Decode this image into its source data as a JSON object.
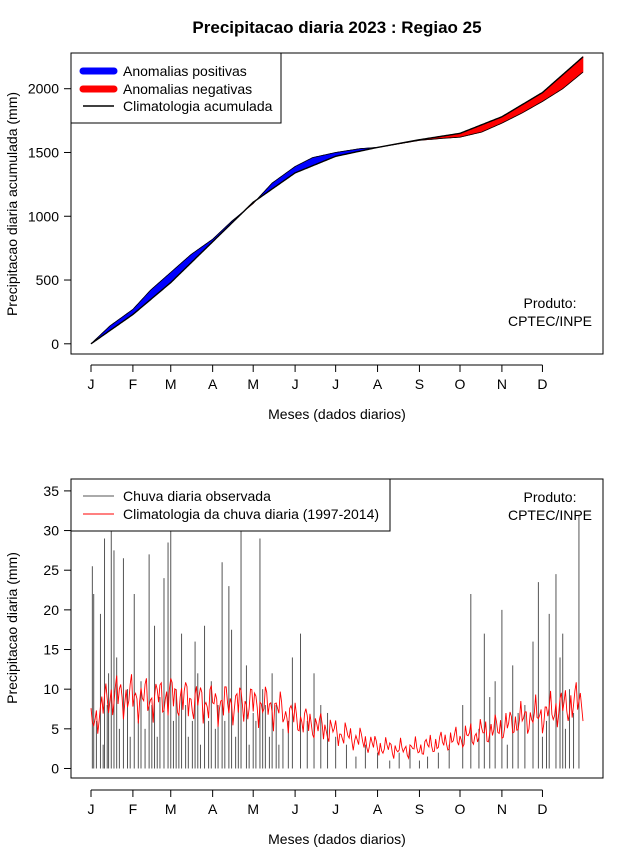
{
  "title": "Precipitacao diaria 2023 : Regiao 25",
  "chart_data": [
    {
      "type": "area",
      "description": "Accumulated daily precipitation vs accumulated climatology (anomaly bands)",
      "xlabel": "Meses (dados diarios)",
      "ylabel": "Precipitacao diaria acumulada (mm)",
      "x_ticks": [
        "J",
        "F",
        "M",
        "A",
        "M",
        "J",
        "J",
        "A",
        "S",
        "O",
        "N",
        "D"
      ],
      "month_start_days": [
        1,
        32,
        60,
        91,
        121,
        152,
        182,
        213,
        244,
        274,
        305,
        335
      ],
      "xlim": [
        1,
        365
      ],
      "ylim": [
        -80,
        2280
      ],
      "y_ticks": [
        0,
        500,
        1000,
        1500,
        2000
      ],
      "legend": {
        "position": "top-left",
        "entries": [
          "Anomalias positivas",
          "Anomalias negativas",
          "Climatologia acumulada"
        ],
        "colors": [
          "#0000ff",
          "#ff0000",
          "#000000"
        ]
      },
      "annotation": [
        "Produto:",
        "CPTEC/INPE"
      ],
      "climatology_cumulative": {
        "days": [
          1,
          32,
          60,
          91,
          121,
          152,
          182,
          213,
          244,
          274,
          305,
          335,
          365
        ],
        "values": [
          0,
          230,
          480,
          800,
          1110,
          1340,
          1470,
          1540,
          1600,
          1650,
          1780,
          1970,
          2250
        ]
      },
      "observed_cumulative": {
        "days": [
          1,
          15,
          32,
          45,
          60,
          75,
          91,
          105,
          121,
          135,
          152,
          165,
          182,
          200,
          213,
          230,
          244,
          260,
          274,
          290,
          305,
          320,
          335,
          350,
          365
        ],
        "values": [
          0,
          140,
          270,
          420,
          560,
          700,
          820,
          960,
          1100,
          1260,
          1390,
          1460,
          1500,
          1530,
          1540,
          1570,
          1595,
          1610,
          1620,
          1660,
          1730,
          1810,
          1900,
          2000,
          2130
        ]
      }
    },
    {
      "type": "bar+line",
      "description": "Observed daily precipitation (bars) and daily climatology 1997-2014 (line)",
      "xlabel": "Meses (dados diarios)",
      "ylabel": "Precipitacao diaria (mm)",
      "x_ticks": [
        "J",
        "F",
        "M",
        "A",
        "M",
        "J",
        "J",
        "A",
        "S",
        "O",
        "N",
        "D"
      ],
      "month_start_days": [
        1,
        32,
        60,
        91,
        121,
        152,
        182,
        213,
        244,
        274,
        305,
        335
      ],
      "xlim": [
        1,
        365
      ],
      "ylim": [
        -1.2,
        36.5
      ],
      "y_ticks": [
        0,
        5,
        10,
        15,
        20,
        25,
        30,
        35
      ],
      "legend": {
        "position": "top-left",
        "entries": [
          "Chuva diaria observada",
          "Climatologia da chuva diaria (1997-2014)"
        ],
        "colors": [
          "#555555",
          "#ff0000"
        ]
      },
      "annotation": [
        "Produto:",
        "CPTEC/INPE"
      ],
      "observed_daily_peaks": {
        "days": [
          2,
          3,
          5,
          8,
          10,
          11,
          13,
          14,
          16,
          18,
          20,
          22,
          25,
          28,
          30,
          33,
          36,
          38,
          41,
          44,
          46,
          48,
          50,
          52,
          55,
          58,
          60,
          62,
          64,
          66,
          68,
          71,
          73,
          76,
          78,
          80,
          82,
          85,
          88,
          90,
          93,
          95,
          98,
          100,
          103,
          105,
          108,
          110,
          112,
          116,
          118,
          121,
          123,
          126,
          128,
          130,
          133,
          135,
          138,
          140,
          143,
          147,
          150,
          156,
          161,
          166,
          171,
          176,
          182,
          190,
          197,
          204,
          213,
          222,
          229,
          237,
          244,
          250,
          258,
          266,
          276,
          282,
          288,
          292,
          296,
          300,
          305,
          309,
          313,
          317,
          322,
          328,
          332,
          335,
          338,
          340,
          345,
          348,
          350,
          352,
          355,
          358,
          362
        ],
        "values": [
          25.5,
          22,
          6,
          19.5,
          3,
          29,
          8,
          12,
          30,
          27.5,
          14,
          5,
          26.5,
          10,
          4,
          22,
          6,
          11,
          5,
          27,
          8,
          18,
          4,
          9,
          24,
          28.5,
          30,
          6,
          10,
          7,
          17,
          8,
          4,
          6,
          16,
          12,
          3,
          18,
          6,
          11,
          5,
          8,
          26,
          6,
          23,
          17.5,
          4,
          8,
          30,
          13,
          3,
          7,
          6,
          29,
          10,
          8,
          4,
          12,
          8,
          3,
          5,
          6,
          14,
          17,
          6,
          12,
          8,
          7,
          4,
          3,
          1.5,
          3,
          2,
          1,
          2,
          2.5,
          1,
          1.5,
          2,
          3,
          8,
          22,
          5,
          17,
          9,
          11,
          20,
          3,
          13,
          7,
          8,
          16,
          23.5,
          4,
          6,
          19.5,
          24.5,
          14,
          17,
          5,
          10,
          7,
          32
        ]
      },
      "climatology_daily": {
        "days": [
          1,
          15,
          32,
          45,
          60,
          75,
          91,
          105,
          121,
          135,
          152,
          165,
          182,
          200,
          213,
          230,
          244,
          260,
          274,
          290,
          305,
          320,
          335,
          350,
          365
        ],
        "values": [
          5.5,
          9.2,
          9,
          8.8,
          9.2,
          8.6,
          8.3,
          8.2,
          8.2,
          7.8,
          6.4,
          5.6,
          4.6,
          3.6,
          2.8,
          2.4,
          2.6,
          3.3,
          3.8,
          4.5,
          5.2,
          6.2,
          6.8,
          7.8,
          8.6
        ]
      }
    }
  ]
}
